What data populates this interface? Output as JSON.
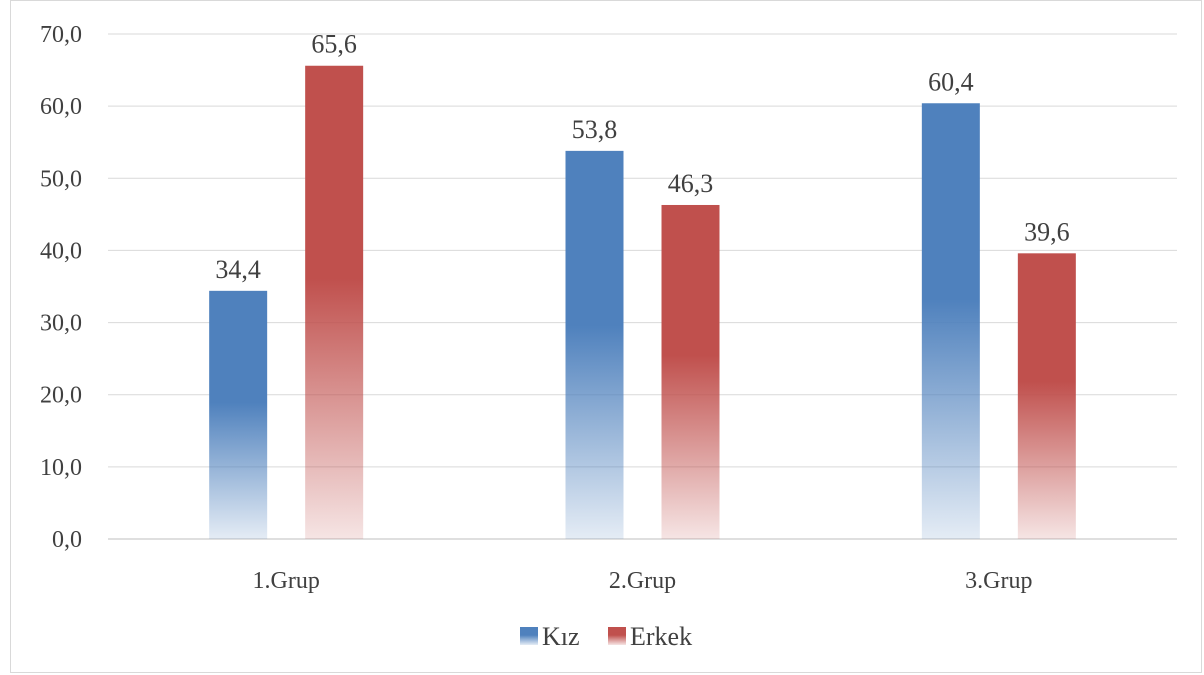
{
  "chart_data": {
    "type": "bar",
    "title": "",
    "xlabel": "",
    "ylabel": "",
    "categories": [
      "1.Grup",
      "2.Grup",
      "3.Grup"
    ],
    "series": [
      {
        "name": "Kız",
        "values": [
          34.4,
          53.8,
          60.4
        ],
        "labels": [
          "34,4",
          "53,8",
          "60,4"
        ],
        "color": "#4f81bd"
      },
      {
        "name": "Erkek",
        "values": [
          65.6,
          46.3,
          39.6
        ],
        "labels": [
          "65,6",
          "46,3",
          "39,6"
        ],
        "color": "#c0504d"
      }
    ],
    "ylim": [
      0,
      70
    ],
    "yticks": [
      0,
      10,
      20,
      30,
      40,
      50,
      60,
      70
    ],
    "ytick_labels": [
      "0,0",
      "10,0",
      "20,0",
      "30,0",
      "40,0",
      "50,0",
      "60,0",
      "70,0"
    ],
    "grid": true,
    "legend_position": "bottom"
  }
}
